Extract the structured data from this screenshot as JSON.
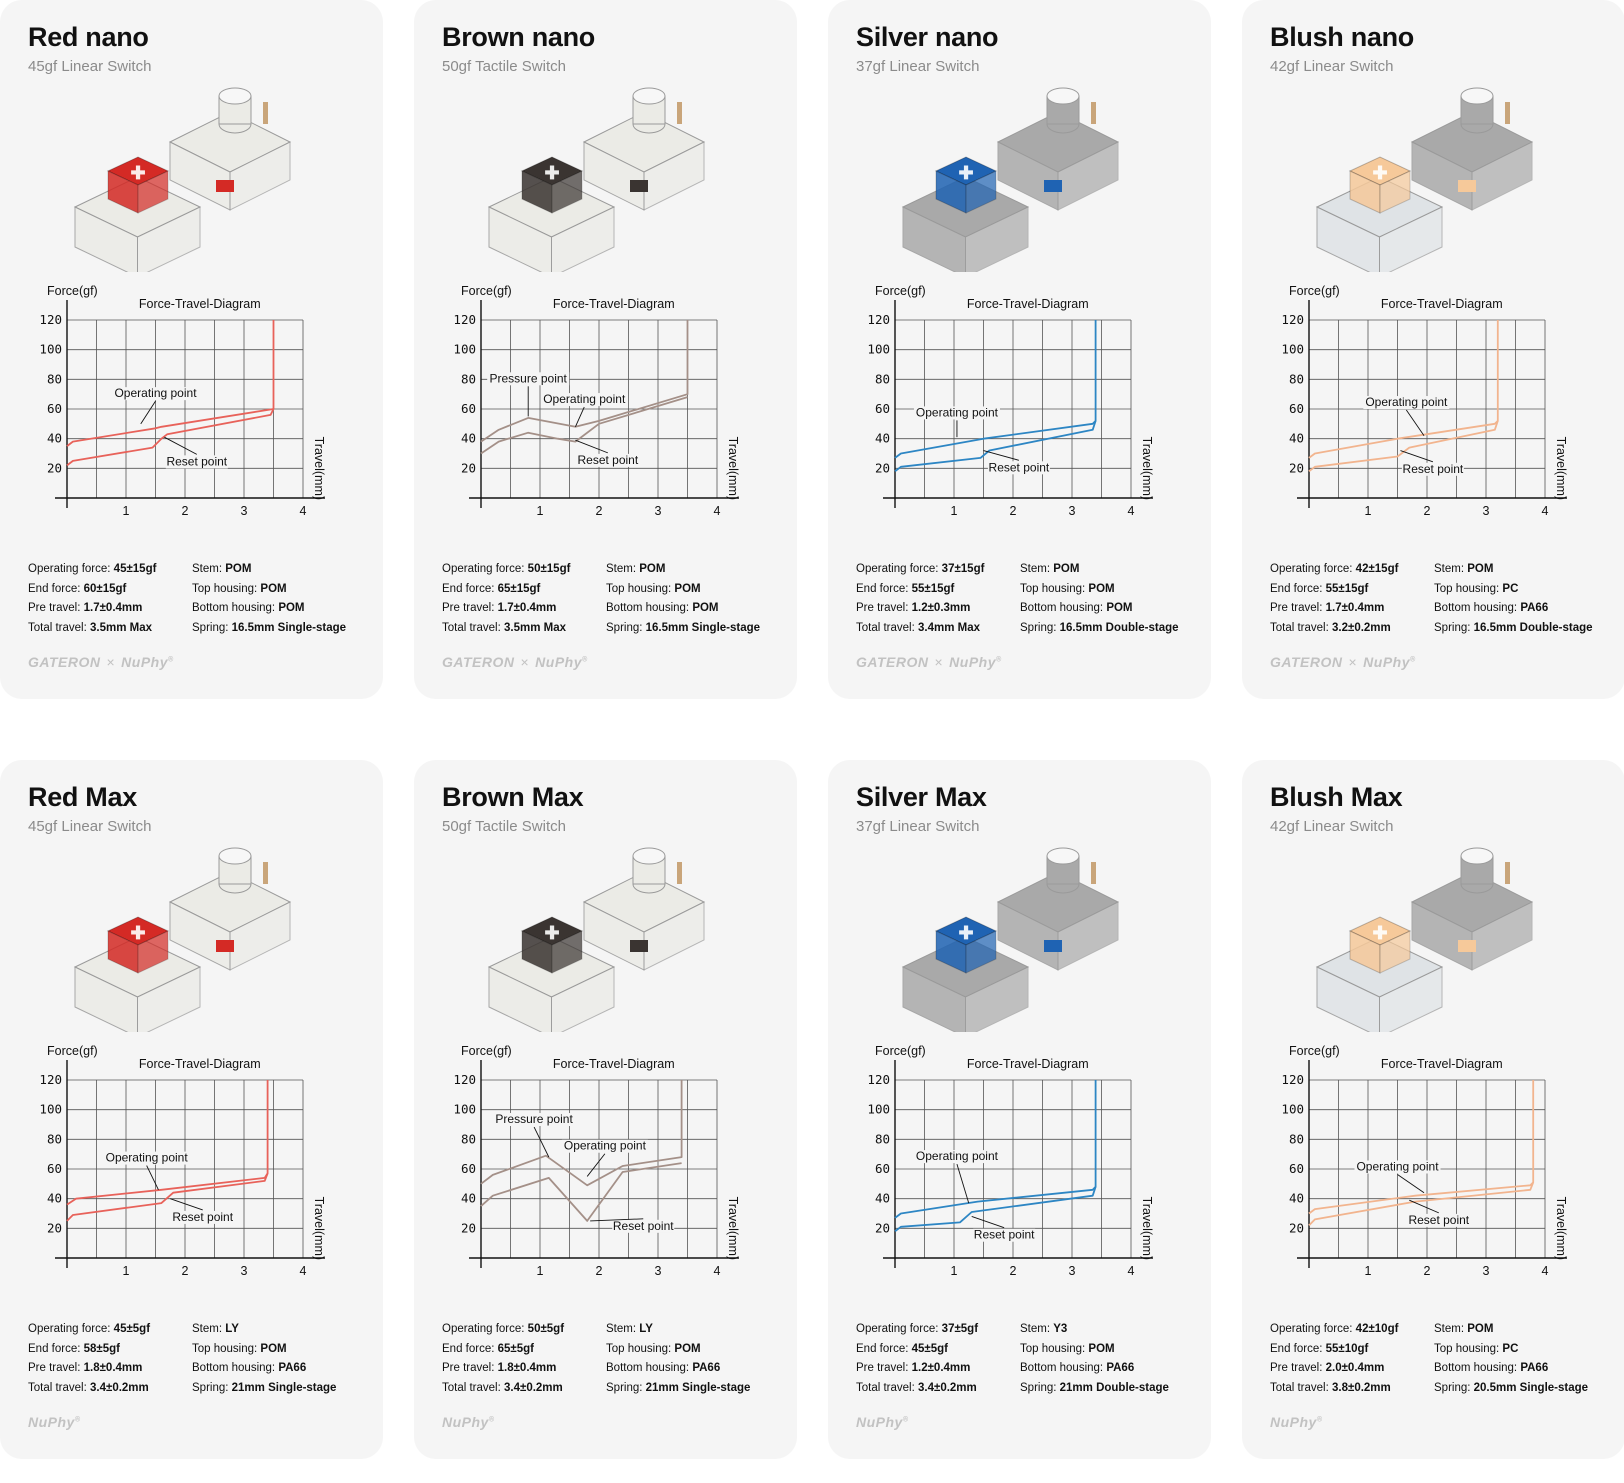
{
  "common": {
    "chart_title": "Force-Travel-Diagram",
    "y_axis_label": "Force(gf)",
    "x_axis_label": "Travel(mm)",
    "y_ticks": [
      "120",
      "100",
      "80",
      "60",
      "40",
      "20"
    ],
    "x_ticks": [
      "1",
      "2",
      "3",
      "4"
    ],
    "spec_labels": {
      "operating_force": "Operating force:",
      "end_force": "End force:",
      "pre_travel": "Pre travel:",
      "total_travel": "Total travel:",
      "stem": "Stem:",
      "top_housing": "Top housing:",
      "bottom_housing": "Bottom housing:",
      "spring": "Spring:"
    },
    "brand_gateron": "GATERON",
    "brand_x": "×",
    "brand_nuphy": "NuPhy",
    "brand_reg": "®"
  },
  "cards": [
    {
      "name": "Red nano",
      "subtitle": "45gf Linear Switch",
      "specs": {
        "operating_force": "45±15gf",
        "end_force": "60±15gf",
        "pre_travel": "1.7±0.4mm",
        "total_travel": "3.5mm Max",
        "stem": "POM",
        "top_housing": "POM",
        "bottom_housing": "POM",
        "spring": "16.5mm Single-stage"
      },
      "labels": {
        "operating": "Operating point",
        "reset": "Reset point"
      }
    },
    {
      "name": "Brown nano",
      "subtitle": "50gf Tactile Switch",
      "specs": {
        "operating_force": "50±15gf",
        "end_force": "65±15gf",
        "pre_travel": "1.7±0.4mm",
        "total_travel": "3.5mm Max",
        "stem": "POM",
        "top_housing": "POM",
        "bottom_housing": "POM",
        "spring": "16.5mm Single-stage"
      },
      "labels": {
        "pressure": "Pressure point",
        "operating": "Operating point",
        "reset": "Reset point"
      }
    },
    {
      "name": "Silver nano",
      "subtitle": "37gf Linear Switch",
      "specs": {
        "operating_force": "37±15gf",
        "end_force": "55±15gf",
        "pre_travel": "1.2±0.3mm",
        "total_travel": "3.4mm Max",
        "stem": "POM",
        "top_housing": "POM",
        "bottom_housing": "POM",
        "spring": "16.5mm Double-stage"
      },
      "labels": {
        "operating": "Operating point",
        "reset": "Reset point"
      }
    },
    {
      "name": "Blush nano",
      "subtitle": "42gf Linear Switch",
      "specs": {
        "operating_force": "42±15gf",
        "end_force": "55±15gf",
        "pre_travel": "1.7±0.4mm",
        "total_travel": "3.2±0.2mm",
        "stem": "POM",
        "top_housing": "PC",
        "bottom_housing": "PA66",
        "spring": "16.5mm Double-stage"
      },
      "labels": {
        "operating": "Operating point",
        "reset": "Reset point"
      }
    },
    {
      "name": "Red Max",
      "subtitle": "45gf Linear Switch",
      "specs": {
        "operating_force": "45±5gf",
        "end_force": "58±5gf",
        "pre_travel": "1.8±0.4mm",
        "total_travel": "3.4±0.2mm",
        "stem": "LY",
        "top_housing": "POM",
        "bottom_housing": "PA66",
        "spring": "21mm Single-stage"
      },
      "labels": {
        "operating": "Operating point",
        "reset": "Reset point"
      }
    },
    {
      "name": "Brown Max",
      "subtitle": "50gf Tactile Switch",
      "specs": {
        "operating_force": "50±5gf",
        "end_force": "65±5gf",
        "pre_travel": "1.8±0.4mm",
        "total_travel": "3.4±0.2mm",
        "stem": "LY",
        "top_housing": "POM",
        "bottom_housing": "PA66",
        "spring": "21mm Single-stage"
      },
      "labels": {
        "pressure": "Pressure point",
        "operating": "Operating point",
        "reset": "Reset point"
      }
    },
    {
      "name": "Silver Max",
      "subtitle": "37gf Linear Switch",
      "specs": {
        "operating_force": "37±5gf",
        "end_force": "45±5gf",
        "pre_travel": "1.2±0.4mm",
        "total_travel": "3.4±0.2mm",
        "stem": "Y3",
        "top_housing": "POM",
        "bottom_housing": "PA66",
        "spring": "21mm Double-stage"
      },
      "labels": {
        "operating": "Operating point",
        "reset": "Reset point"
      }
    },
    {
      "name": "Blush Max",
      "subtitle": "42gf Linear Switch",
      "specs": {
        "operating_force": "42±10gf",
        "end_force": "55±10gf",
        "pre_travel": "2.0±0.4mm",
        "total_travel": "3.8±0.2mm",
        "stem": "POM",
        "top_housing": "PC",
        "bottom_housing": "PA66",
        "spring": "20.5mm Single-stage"
      },
      "labels": {
        "operating": "Operating point",
        "reset": "Reset point"
      }
    }
  ],
  "chart_data": [
    {
      "type": "line",
      "switch": "Red nano",
      "color": "#e8625a",
      "xlim": [
        0,
        4
      ],
      "ylim": [
        0,
        120
      ],
      "series": [
        {
          "x": [
            0,
            0.1,
            1.5,
            1.6,
            3.5,
            3.5
          ],
          "y": [
            35,
            38,
            47,
            48,
            60,
            120
          ]
        },
        {
          "x": [
            0,
            0.1,
            1.45,
            1.6,
            1.7,
            3.45,
            3.5
          ],
          "y": [
            22,
            25,
            34,
            40,
            43,
            56,
            60
          ]
        }
      ]
    },
    {
      "type": "line",
      "switch": "Brown nano",
      "color": "#a49088",
      "xlim": [
        0,
        4
      ],
      "ylim": [
        0,
        120
      ],
      "series": [
        {
          "x": [
            0,
            0.3,
            0.8,
            1.6,
            2.0,
            3.5,
            3.5
          ],
          "y": [
            38,
            46,
            54,
            48,
            52,
            70,
            120
          ]
        },
        {
          "x": [
            0,
            0.3,
            0.8,
            1.3,
            1.6,
            2.0,
            3.5
          ],
          "y": [
            30,
            38,
            44,
            40,
            38,
            50,
            68
          ]
        }
      ]
    },
    {
      "type": "line",
      "switch": "Silver nano",
      "color": "#2d86c4",
      "xlim": [
        0,
        4
      ],
      "ylim": [
        0,
        120
      ],
      "series": [
        {
          "x": [
            0,
            0.1,
            1.5,
            3.35,
            3.4,
            3.4
          ],
          "y": [
            27,
            30,
            40,
            50,
            52,
            120
          ]
        },
        {
          "x": [
            0,
            0.1,
            1.45,
            1.6,
            3.35,
            3.4
          ],
          "y": [
            18,
            21,
            27,
            32,
            46,
            52
          ]
        }
      ]
    },
    {
      "type": "line",
      "switch": "Blush nano",
      "color": "#f2b48e",
      "xlim": [
        0,
        4
      ],
      "ylim": [
        0,
        120
      ],
      "series": [
        {
          "x": [
            0,
            0.1,
            1.5,
            3.15,
            3.2,
            3.2
          ],
          "y": [
            27,
            30,
            40,
            50,
            52,
            120
          ]
        },
        {
          "x": [
            0,
            0.1,
            1.5,
            1.7,
            3.15,
            3.2
          ],
          "y": [
            18,
            21,
            28,
            34,
            46,
            52
          ]
        }
      ]
    },
    {
      "type": "line",
      "switch": "Red Max",
      "color": "#e8625a",
      "xlim": [
        0,
        4
      ],
      "ylim": [
        0,
        120
      ],
      "series": [
        {
          "x": [
            0,
            0.15,
            1.6,
            3.35,
            3.4,
            3.4
          ],
          "y": [
            36,
            40,
            46,
            54,
            57,
            120
          ]
        },
        {
          "x": [
            0,
            0.1,
            1.6,
            1.8,
            3.35,
            3.4
          ],
          "y": [
            25,
            29,
            37,
            44,
            52,
            57
          ]
        }
      ]
    },
    {
      "type": "line",
      "switch": "Brown Max",
      "color": "#a49088",
      "xlim": [
        0,
        4
      ],
      "ylim": [
        0,
        120
      ],
      "series": [
        {
          "x": [
            0,
            0.2,
            1.1,
            1.8,
            2.4,
            3.4,
            3.4
          ],
          "y": [
            50,
            56,
            69,
            49,
            62,
            68,
            120
          ]
        },
        {
          "x": [
            0,
            0.2,
            1.15,
            1.8,
            2.4,
            3.4
          ],
          "y": [
            35,
            42,
            54,
            25,
            58,
            64
          ]
        }
      ]
    },
    {
      "type": "line",
      "switch": "Silver Max",
      "color": "#2d86c4",
      "xlim": [
        0,
        4
      ],
      "ylim": [
        0,
        120
      ],
      "series": [
        {
          "x": [
            0,
            0.1,
            1.4,
            3.35,
            3.4,
            3.4
          ],
          "y": [
            27,
            30,
            38,
            46,
            48,
            120
          ]
        },
        {
          "x": [
            0,
            0.1,
            1.1,
            1.3,
            3.35,
            3.4
          ],
          "y": [
            18,
            21,
            24,
            31,
            42,
            48
          ]
        }
      ]
    },
    {
      "type": "line",
      "switch": "Blush Max",
      "color": "#f2b48e",
      "xlim": [
        0,
        4
      ],
      "ylim": [
        0,
        120
      ],
      "series": [
        {
          "x": [
            0,
            0.1,
            1.8,
            3.75,
            3.8,
            3.8
          ],
          "y": [
            30,
            33,
            42,
            49,
            51,
            120
          ]
        },
        {
          "x": [
            0,
            0.1,
            1.8,
            3.75,
            3.8
          ],
          "y": [
            22,
            26,
            38,
            46,
            51
          ]
        }
      ]
    }
  ],
  "switch_images": [
    {
      "stem": "#d42a25",
      "housing": "#ebebe6",
      "alt_housing": "#ebebe6"
    },
    {
      "stem": "#3a3431",
      "housing": "#ebebe6",
      "alt_housing": "#ebebe6"
    },
    {
      "stem": "#1f63b3",
      "housing": "#a9a9a9",
      "alt_housing": "#a9a9a9"
    },
    {
      "stem": "#f6c99a",
      "housing": "#dfe3e6",
      "alt_housing": "#a9a9a9"
    },
    {
      "stem": "#d42a25",
      "housing": "#ebebe6",
      "alt_housing": "#ebebe6"
    },
    {
      "stem": "#3a3431",
      "housing": "#ebebe6",
      "alt_housing": "#ebebe6"
    },
    {
      "stem": "#1f63b3",
      "housing": "#a9a9a9",
      "alt_housing": "#a9a9a9"
    },
    {
      "stem": "#f6c99a",
      "housing": "#dfe3e6",
      "alt_housing": "#a9a9a9"
    }
  ],
  "brand_rows": [
    "gateron_nuphy",
    "gateron_nuphy",
    "gateron_nuphy",
    "gateron_nuphy",
    "nuphy",
    "nuphy",
    "nuphy",
    "nuphy"
  ]
}
